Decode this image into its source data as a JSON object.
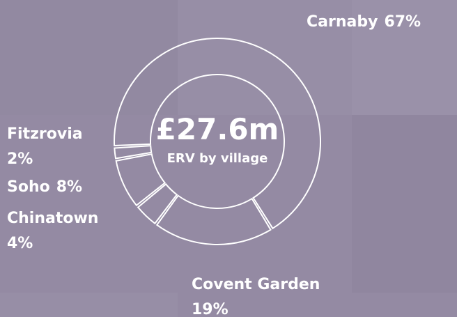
{
  "chart_data": {
    "type": "donut",
    "center_value": "£27.6m",
    "center_label": "ERV by village",
    "categories": [
      "Carnaby",
      "Covent Garden",
      "Chinatown",
      "Soho",
      "Fitzrovia"
    ],
    "values": [
      67,
      19,
      4,
      8,
      2
    ],
    "value_labels": [
      "67%",
      "19%",
      "4%",
      "8%",
      "2%"
    ],
    "color": "#ffffff"
  }
}
